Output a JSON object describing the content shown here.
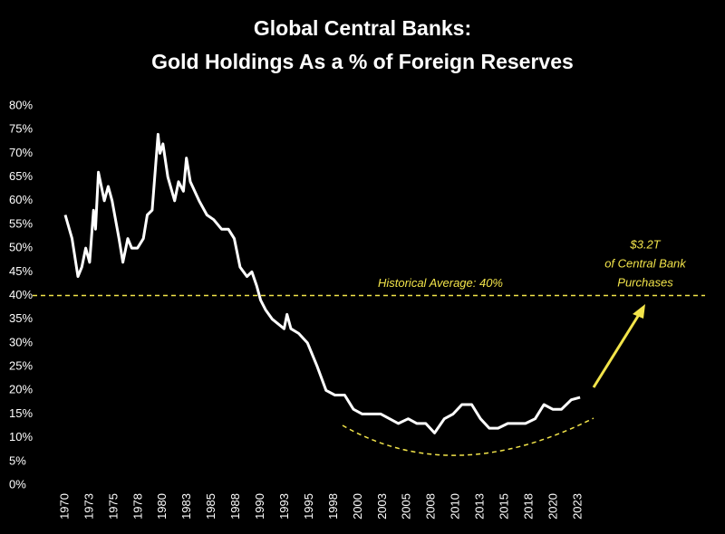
{
  "chart_data": {
    "type": "line",
    "title": "Global Central Banks:",
    "subtitle": "Gold Holdings As a % of Foreign Reserves",
    "x": [
      1970.0,
      1970.7,
      1971.3,
      1971.7,
      1972.1,
      1972.5,
      1972.9,
      1973.1,
      1973.4,
      1974.0,
      1974.4,
      1974.8,
      1975.5,
      1975.9,
      1976.4,
      1976.8,
      1977.4,
      1978.0,
      1978.4,
      1978.9,
      1979.5,
      1979.7,
      1980.0,
      1980.5,
      1981.2,
      1981.6,
      1982.1,
      1982.4,
      1982.8,
      1983.7,
      1984.5,
      1985.2,
      1986.0,
      1986.7,
      1987.3,
      1987.9,
      1988.6,
      1989.1,
      1989.6,
      1990.0,
      1990.5,
      1991.2,
      1991.8,
      1992.4,
      1992.7,
      1993.1,
      1993.9,
      1994.8,
      1995.8,
      1996.7,
      1997.6,
      1998.6,
      1999.5,
      2000.4,
      2001.3,
      2002.3,
      2003.2,
      2004.1,
      2005.1,
      2006.0,
      2006.9,
      2007.8,
      2008.8,
      2009.7,
      2010.6,
      2011.6,
      2012.5,
      2013.4,
      2014.3,
      2015.3,
      2016.2,
      2017.1,
      2018.1,
      2019.0,
      2019.9,
      2020.8,
      2021.8,
      2022.7
    ],
    "series": [
      {
        "color": "#ffffff",
        "values": [
          57,
          52,
          44,
          46,
          50,
          47,
          58,
          54,
          66,
          60,
          63,
          60,
          52,
          47,
          52,
          50,
          50,
          52,
          57,
          58,
          74,
          70,
          72,
          65,
          60,
          64,
          62,
          69,
          64,
          60,
          57,
          56,
          54,
          54,
          52,
          46,
          44,
          45,
          42,
          39,
          37,
          35,
          34,
          33,
          36,
          33,
          32,
          30,
          25,
          20,
          19,
          19,
          16,
          15,
          15,
          15,
          14,
          13,
          14,
          13,
          13,
          11,
          14,
          15,
          17,
          17,
          14,
          12,
          12,
          13,
          13,
          13,
          14,
          17,
          16,
          16,
          18,
          18.5
        ]
      }
    ],
    "xlim": [
      1968.5,
      2026
    ],
    "xticks": [
      1970,
      {
        "value": 1972.5,
        "label": "1973"
      },
      1975,
      {
        "value": 1977.5,
        "label": "1978"
      },
      1980,
      {
        "value": 1982.5,
        "label": "1983"
      },
      1985,
      {
        "value": 1987.5,
        "label": "1988"
      },
      1990,
      {
        "value": 1992.5,
        "label": "1993"
      },
      1995,
      {
        "value": 1997.5,
        "label": "1998"
      },
      2000,
      {
        "value": 2002.5,
        "label": "2003"
      },
      2005,
      {
        "value": 2007.5,
        "label": "2008"
      },
      2010,
      {
        "value": 2012.5,
        "label": "2013"
      },
      2015,
      {
        "value": 2017.5,
        "label": "2018"
      },
      2020,
      {
        "value": 2022.5,
        "label": "2023"
      }
    ],
    "ylim": [
      0,
      80
    ],
    "yticks": [
      {
        "value": 0,
        "label": "0%"
      },
      {
        "value": 5,
        "label": "5%"
      },
      {
        "value": 10,
        "label": "10%"
      },
      {
        "value": 15,
        "label": "15%"
      },
      {
        "value": 20,
        "label": "20%"
      },
      {
        "value": 25,
        "label": "25%"
      },
      {
        "value": 30,
        "label": "30%"
      },
      {
        "value": 35,
        "label": "35%"
      },
      {
        "value": 40,
        "label": "40%"
      },
      {
        "value": 45,
        "label": "45%"
      },
      {
        "value": 50,
        "label": "50%"
      },
      {
        "value": 55,
        "label": "55%"
      },
      {
        "value": 60,
        "label": "60%"
      },
      {
        "value": 65,
        "label": "65%"
      },
      {
        "value": 70,
        "label": "70%"
      },
      {
        "value": 75,
        "label": "75%"
      },
      {
        "value": 80,
        "label": "80%"
      }
    ],
    "average": {
      "value": 40,
      "label": "Historical Average: 40%",
      "color": "#f2e44a"
    },
    "annotation": [
      "$3.2T",
      "of Central Bank",
      "Purchases"
    ]
  }
}
